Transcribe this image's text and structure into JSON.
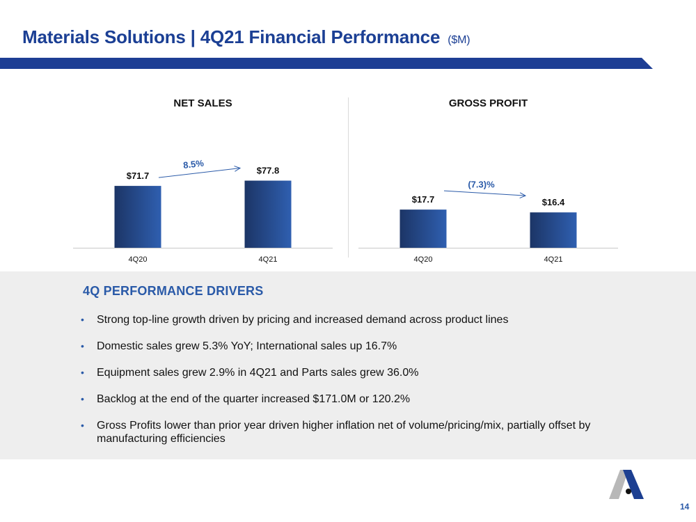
{
  "header": {
    "title": "Materials Solutions | 4Q21 Financial Performance",
    "units": "($M)"
  },
  "colors": {
    "brand_blue": "#1b3f94",
    "bar_dark": "#1c3566",
    "bar_light": "#2f5fb0",
    "accent_blue": "#2a5aa8"
  },
  "chart_data": [
    {
      "type": "bar",
      "title": "NET SALES",
      "categories": [
        "4Q20",
        "4Q21"
      ],
      "values": [
        71.7,
        77.8
      ],
      "value_labels": [
        "$71.7",
        "$77.8"
      ],
      "change_label": "8.5%",
      "ylim": [
        0,
        100
      ],
      "grid": false
    },
    {
      "type": "bar",
      "title": "GROSS PROFIT",
      "categories": [
        "4Q20",
        "4Q21"
      ],
      "values": [
        17.7,
        16.4
      ],
      "value_labels": [
        "$17.7",
        "$16.4"
      ],
      "change_label": "(7.3)%",
      "ylim": [
        0,
        40
      ],
      "grid": false
    }
  ],
  "drivers": {
    "title": "4Q PERFORMANCE DRIVERS",
    "bullet_glyph": "•",
    "items": [
      "Strong top-line growth driven by pricing and increased demand across product lines",
      "Domestic sales grew 5.3% YoY; International sales up 16.7%",
      "Equipment sales grew 2.9% in 4Q21 and Parts sales grew 36.0%",
      "Backlog at the end of the quarter increased $171.0M or 120.2%",
      "Gross Profits lower than prior year driven higher inflation net of volume/pricing/mix, partially offset by manufacturing efficiencies"
    ]
  },
  "footer": {
    "logo_icon": "company-a-logo-icon",
    "page_number": "14"
  }
}
